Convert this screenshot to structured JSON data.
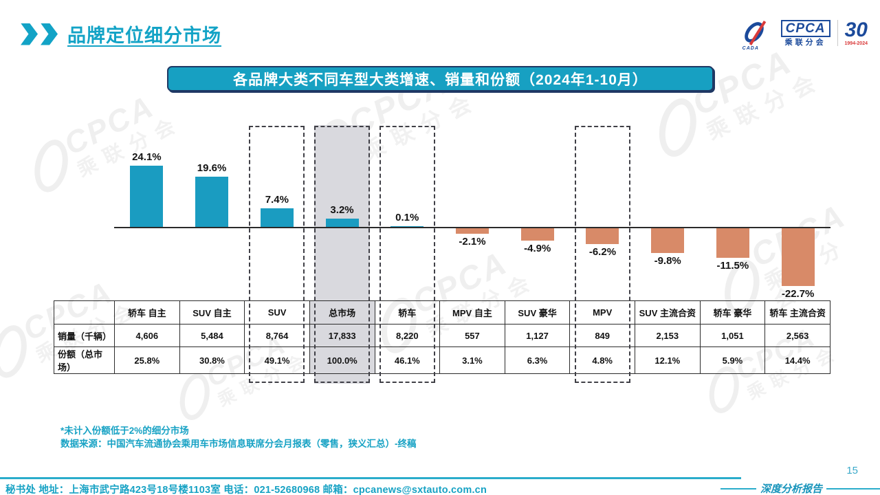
{
  "page": {
    "title": "品牌定位细分市场",
    "page_number": "15",
    "report_label": "深度分析报告",
    "footer": "秘书处  地址：上海市武宁路423号18号楼1103室 电话：021-52680968   邮箱：cpcanews@sxtauto.com.cn",
    "notes": [
      "*未计入份额低于2%的细分市场",
      "数据来源：中国汽车流通协会乘用车市场信息联席分会月报表（零售，狭义汇总）-终稿"
    ]
  },
  "logo": {
    "cpca": "CPCA",
    "cpca_sub": "乘联分会",
    "cada": "CADA",
    "anniversary": "30",
    "anniversary_years": "1994-2024"
  },
  "banner": {
    "text": "各品牌大类不同车型大类增速、销量和份额（2024年1-10月）"
  },
  "chart_data": {
    "type": "bar",
    "title": "各品牌大类不同车型大类增速、销量和份额（2024年1-10月）",
    "categories": [
      "轿车 自主",
      "SUV 自主",
      "SUV",
      "总市场",
      "轿车",
      "MPV 自主",
      "SUV 豪华",
      "MPV",
      "SUV 主流合资",
      "轿车 豪华",
      "轿车 主流合资"
    ],
    "series": [
      {
        "name": "增速",
        "values": [
          24.1,
          19.6,
          7.4,
          3.2,
          0.1,
          -2.1,
          -4.9,
          -6.2,
          -9.8,
          -11.5,
          -22.7
        ]
      },
      {
        "name": "销量（千辆）",
        "values": [
          "4,606",
          "5,484",
          "8,764",
          "17,833",
          "8,220",
          "557",
          "1,127",
          "849",
          "2,153",
          "1,051",
          "2,563"
        ]
      },
      {
        "name": "份额（总市场）",
        "values": [
          "25.8%",
          "30.8%",
          "49.1%",
          "100.0%",
          "46.1%",
          "3.1%",
          "6.3%",
          "4.8%",
          "12.1%",
          "5.9%",
          "14.4%"
        ]
      }
    ],
    "growth_labels": [
      "24.1%",
      "19.6%",
      "7.4%",
      "3.2%",
      "0.1%",
      "-2.1%",
      "-4.9%",
      "-6.2%",
      "-9.8%",
      "-11.5%",
      "-22.7%"
    ],
    "row_labels": [
      "销量（千辆）",
      "份额（总市场）"
    ],
    "highlight_dashed_columns": [
      2,
      3,
      4,
      7
    ],
    "highlight_filled_column": 3,
    "colors": {
      "positive": "#1a9cc1",
      "negative": "#d88a68",
      "highlight_fill": "#d9d9de",
      "accent_teal": "#17a0c2"
    },
    "ylim": [
      -25,
      26
    ],
    "grid": false,
    "legend_position": "none",
    "value_label_position": "outside-end"
  }
}
